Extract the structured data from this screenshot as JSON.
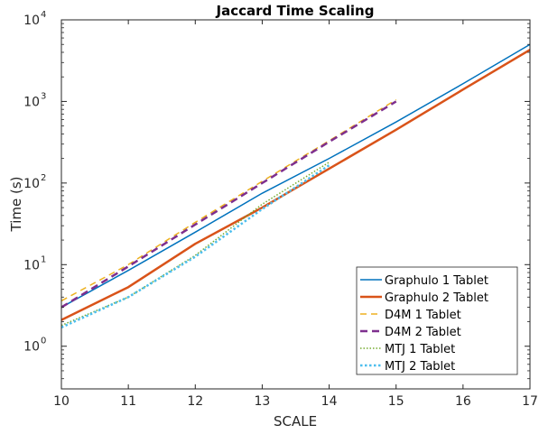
{
  "chart_data": {
    "type": "line",
    "title": "Jaccard Time Scaling",
    "xlabel": "SCALE",
    "ylabel": "Time (s)",
    "xlim": [
      10,
      17
    ],
    "ylim": [
      0.3,
      10000
    ],
    "yscale": "log",
    "grid": false,
    "legend_position": "bottom-right",
    "x_ticks": [
      "10",
      "11",
      "12",
      "13",
      "14",
      "15",
      "16",
      "17"
    ],
    "y_ticks": [
      {
        "base": "10",
        "exp": "0",
        "value": 1
      },
      {
        "base": "10",
        "exp": "1",
        "value": 10
      },
      {
        "base": "10",
        "exp": "2",
        "value": 100
      },
      {
        "base": "10",
        "exp": "3",
        "value": 1000
      },
      {
        "base": "10",
        "exp": "4",
        "value": 10000
      }
    ],
    "series": [
      {
        "name": "Graphulo 1 Tablet",
        "color": "#0072BD",
        "dash": "solid",
        "width": 1.5,
        "x": [
          10,
          11,
          12,
          13,
          14,
          15,
          16,
          17
        ],
        "y": [
          3.0,
          8.5,
          25,
          75,
          200,
          560,
          1650,
          5000
        ]
      },
      {
        "name": "Graphulo 2 Tablet",
        "color": "#D95319",
        "dash": "solid",
        "width": 2.5,
        "x": [
          10,
          11,
          12,
          13,
          14,
          15,
          16,
          17
        ],
        "y": [
          2.1,
          5.3,
          18,
          50,
          150,
          450,
          1400,
          4300
        ]
      },
      {
        "name": "D4M 1 Tablet",
        "color": "#EDB120",
        "dash": "dashed",
        "width": 1.5,
        "x": [
          10,
          11,
          12,
          13,
          14,
          15
        ],
        "y": [
          3.6,
          10,
          33,
          105,
          330,
          1050
        ]
      },
      {
        "name": "D4M 2 Tablet",
        "color": "#7E2F8E",
        "dash": "dashed",
        "width": 2.5,
        "x": [
          10,
          11,
          12,
          13,
          14,
          15
        ],
        "y": [
          3.0,
          9.5,
          31,
          100,
          320,
          1000
        ]
      },
      {
        "name": "MTJ 1 Tablet",
        "color": "#77AC30",
        "dash": "dotted",
        "width": 1.5,
        "x": [
          10,
          11,
          12,
          13,
          14
        ],
        "y": [
          1.8,
          4.0,
          13,
          55,
          180
        ]
      },
      {
        "name": "MTJ 2 Tablet",
        "color": "#4DBEEE",
        "dash": "dotted",
        "width": 2.5,
        "x": [
          10,
          11,
          12,
          13,
          14
        ],
        "y": [
          1.7,
          4.0,
          12.5,
          48,
          165
        ]
      }
    ]
  }
}
